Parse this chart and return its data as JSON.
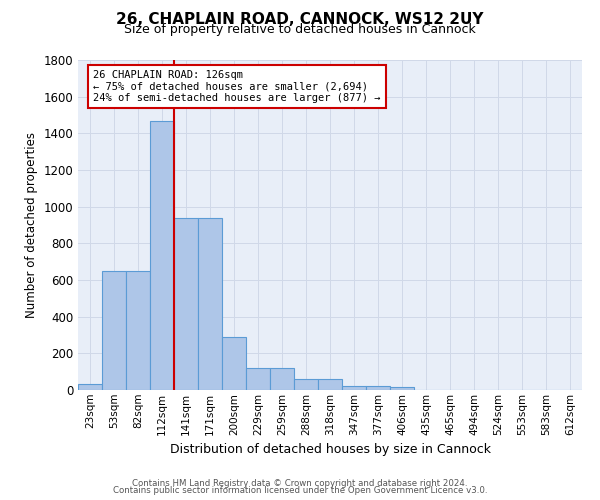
{
  "title": "26, CHAPLAIN ROAD, CANNOCK, WS12 2UY",
  "subtitle": "Size of property relative to detached houses in Cannock",
  "xlabel": "Distribution of detached houses by size in Cannock",
  "ylabel": "Number of detached properties",
  "bar_labels": [
    "23sqm",
    "53sqm",
    "82sqm",
    "112sqm",
    "141sqm",
    "171sqm",
    "200sqm",
    "229sqm",
    "259sqm",
    "288sqm",
    "318sqm",
    "347sqm",
    "377sqm",
    "406sqm",
    "435sqm",
    "465sqm",
    "494sqm",
    "524sqm",
    "553sqm",
    "583sqm",
    "612sqm"
  ],
  "bar_values": [
    35,
    650,
    650,
    1470,
    940,
    940,
    290,
    120,
    120,
    60,
    60,
    20,
    20,
    15,
    0,
    0,
    0,
    0,
    0,
    0,
    0
  ],
  "bar_color": "#aec6e8",
  "bar_edge_color": "#5b9bd5",
  "grid_color": "#d0d8e8",
  "background_color": "#e8eef8",
  "annotation_text": "26 CHAPLAIN ROAD: 126sqm\n← 75% of detached houses are smaller (2,694)\n24% of semi-detached houses are larger (877) →",
  "annotation_box_color": "#ffffff",
  "annotation_border_color": "#cc0000",
  "red_line_color": "#cc0000",
  "ylim": [
    0,
    1800
  ],
  "yticks": [
    0,
    200,
    400,
    600,
    800,
    1000,
    1200,
    1400,
    1600,
    1800
  ],
  "footer_line1": "Contains HM Land Registry data © Crown copyright and database right 2024.",
  "footer_line2": "Contains public sector information licensed under the Open Government Licence v3.0."
}
